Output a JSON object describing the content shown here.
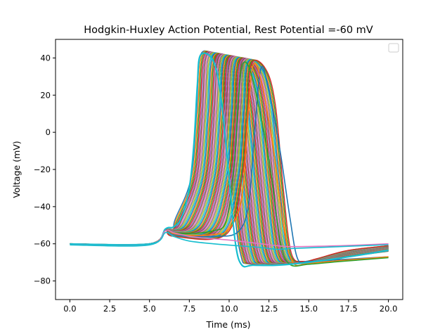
{
  "chart_data": {
    "type": "line",
    "title": "Hodgkin-Huxley Action Potential, Rest Potential =-60 mV",
    "xlabel": "Time (ms)",
    "ylabel": "Voltage (mV)",
    "xlim": [
      -0.9,
      20.9
    ],
    "ylim": [
      -90,
      50
    ],
    "xticks": [
      0,
      2.5,
      5,
      7.5,
      10,
      12.5,
      15,
      17.5,
      20
    ],
    "xtick_labels": [
      "0.0",
      "2.5",
      "5.0",
      "7.5",
      "10.0",
      "12.5",
      "15.0",
      "17.5",
      "20.0"
    ],
    "yticks": [
      -80,
      -60,
      -40,
      -20,
      0,
      20,
      40
    ],
    "ytick_labels": [
      "−80",
      "−60",
      "−40",
      "−20",
      "0",
      "20",
      "40"
    ],
    "grid": false,
    "legend": "top-right, empty",
    "palette": [
      "#1f77b4",
      "#ff7f0e",
      "#2ca02c",
      "#d62728",
      "#9467bd",
      "#8c564b",
      "#e377c2",
      "#7f7f7f",
      "#bcbd22",
      "#17becf"
    ],
    "series_count": 48,
    "series_overview": {
      "rest_voltage": -60,
      "stimulus_onset_ms": 5.0,
      "stimulus_plateau_ms": 6.0,
      "earliest_spike": {
        "peak_time_ms": 8.2,
        "peak_mv": 41.5,
        "repolarized_time_ms": 10.8,
        "min_mv": -71.5
      },
      "latest_spike": {
        "peak_time_ms": 12.0,
        "peak_mv": 34.5,
        "repolarized_time_ms": 14.2,
        "min_mv": -69.5
      },
      "end_voltage_range_mv": [
        -67,
        -60
      ]
    },
    "series": [
      {
        "color": "#1f77b4",
        "x": [
          0,
          5.0,
          6.0,
          6.5,
          7.5,
          9.0,
          10.5,
          11.2,
          11.6,
          12.0,
          12.5,
          13.2,
          13.8,
          14.3,
          15.0,
          17.0,
          20.0
        ],
        "y": [
          -60,
          -60,
          -53,
          -55,
          -56,
          -56,
          -54,
          -40,
          0,
          34.5,
          22,
          -10,
          -45,
          -68,
          -69.5,
          -68.5,
          -67
        ]
      },
      {
        "color": "#ff7f0e",
        "x": [
          0,
          5.0,
          6.0,
          6.5,
          7.5,
          9.0,
          10.0,
          10.8,
          11.2,
          11.5,
          12.0,
          12.8,
          13.4,
          14.0,
          15.0,
          17.0,
          20.0
        ],
        "y": [
          -60,
          -60,
          -53,
          -54.5,
          -55.5,
          -55,
          -52,
          -35,
          10,
          36,
          28,
          -10,
          -50,
          -70,
          -70.5,
          -69,
          -67
        ]
      },
      {
        "color": "#2ca02c",
        "x": [
          0,
          5.0,
          6.0,
          6.5,
          7.5,
          9.0,
          9.8,
          10.3,
          10.6,
          10.9,
          11.5,
          12.5,
          13.2,
          13.8,
          15.0,
          17.0,
          20.0
        ],
        "y": [
          -60,
          -60,
          -53,
          -54,
          -54.5,
          -53,
          -48,
          -20,
          20,
          37.5,
          28,
          -15,
          -58,
          -71,
          -71,
          -69.5,
          -67.5
        ]
      },
      {
        "color": "#17becf",
        "x": [
          0,
          5.0,
          6.0,
          6.5,
          7.0,
          7.5,
          7.8,
          8.0,
          8.2,
          9.0,
          9.5,
          10.0,
          10.4,
          10.8,
          11.5,
          13.0,
          15.0,
          17.5,
          20.0
        ],
        "y": [
          -60.5,
          -60.5,
          -52,
          -51,
          -46,
          -30,
          -5,
          25,
          41.5,
          38.5,
          18,
          -25,
          -60,
          -71.5,
          -71.5,
          -71.5,
          -70,
          -67,
          -63.5
        ]
      },
      {
        "color": "#e377c2",
        "x": [
          0,
          5.0,
          6.0,
          6.5,
          7.5,
          8.5,
          10.0,
          12.0,
          13.0,
          14.0,
          17.0,
          20.0
        ],
        "y": [
          -60,
          -60,
          -53,
          -54,
          -56,
          -57,
          -58,
          -60,
          -61,
          -61.5,
          -61,
          -60
        ]
      },
      {
        "color": "#17becf",
        "x": [
          0,
          5.0,
          6.0,
          6.5,
          7.5,
          9.0,
          10.5,
          12.0,
          13.0,
          14.0,
          17.0,
          20.0
        ],
        "y": [
          -60,
          -60,
          -54,
          -56,
          -58.5,
          -60,
          -61,
          -62,
          -63,
          -62.5,
          -61.5,
          -60.5
        ]
      }
    ]
  }
}
